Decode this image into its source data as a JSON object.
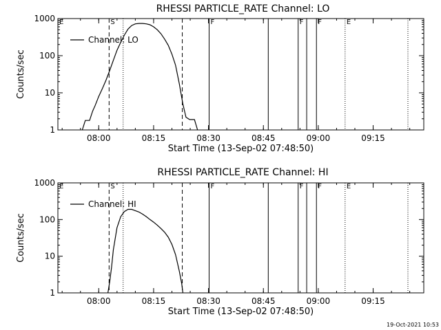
{
  "footer": {
    "timestamp": "19-Oct-2021 10:53"
  },
  "chart_data": [
    {
      "type": "line",
      "title": "RHESSI PARTICLE_RATE Channel: LO",
      "xlabel": "Start Time (13-Sep-02 07:48:50)",
      "ylabel": "Counts/sec",
      "yscale": "log",
      "ylim": [
        1,
        1000
      ],
      "xlim_minutes_clock": [
        "07:48:50",
        "09:28:50"
      ],
      "x_ticks": [
        "08:00",
        "08:15",
        "08:30",
        "08:45",
        "09:00",
        "09:15"
      ],
      "y_ticks": [
        "1",
        "10",
        "100",
        "1000"
      ],
      "legend": {
        "position": "top-left",
        "entries": [
          "Channel: LO"
        ]
      },
      "series": [
        {
          "name": "Channel: LO",
          "x": [
            "07:55:30",
            "07:56:20",
            "07:57:30",
            "07:58:20",
            "07:59:00",
            "08:00:00",
            "08:01:00",
            "08:02:00",
            "08:03:00",
            "08:04:00",
            "08:05:00",
            "08:06:00",
            "08:07:00",
            "08:08:00",
            "08:09:00",
            "08:10:00",
            "08:11:00",
            "08:12:00",
            "08:13:00",
            "08:14:00",
            "08:15:00",
            "08:16:00",
            "08:17:00",
            "08:18:00",
            "08:19:00",
            "08:20:00",
            "08:21:00",
            "08:22:00",
            "08:23:00",
            "08:23:50",
            "08:24:50",
            "08:25:30",
            "08:26:10",
            "08:27:00"
          ],
          "y": [
            1.0,
            1.8,
            1.8,
            3.2,
            4.5,
            8,
            13,
            22,
            40,
            75,
            140,
            230,
            360,
            520,
            650,
            720,
            740,
            740,
            720,
            680,
            600,
            500,
            390,
            280,
            190,
            110,
            55,
            18,
            5,
            2.2,
            1.9,
            1.9,
            1.9,
            1.0
          ]
        }
      ],
      "markers": [
        {
          "label": "E",
          "time": "07:48:50",
          "style": "solid"
        },
        {
          "label": "S",
          "time": "08:02:50",
          "style": "dashed"
        },
        {
          "label": "",
          "time": "08:06:40",
          "style": "dotted"
        },
        {
          "label": "",
          "time": "08:22:50",
          "style": "dashed"
        },
        {
          "label": "F",
          "time": "08:30:10",
          "style": "solid"
        },
        {
          "label": "",
          "time": "08:46:20",
          "style": "solid"
        },
        {
          "label": "F",
          "time": "08:54:30",
          "style": "solid"
        },
        {
          "label": "",
          "time": "08:56:50",
          "style": "solid"
        },
        {
          "label": "F",
          "time": "08:59:30",
          "style": "solid"
        },
        {
          "label": "E",
          "time": "09:07:20",
          "style": "dotted"
        },
        {
          "label": "",
          "time": "09:24:30",
          "style": "dotted"
        }
      ]
    },
    {
      "type": "line",
      "title": "RHESSI PARTICLE_RATE Channel: HI",
      "xlabel": "Start Time (13-Sep-02 07:48:50)",
      "ylabel": "Counts/sec",
      "yscale": "log",
      "ylim": [
        1,
        1000
      ],
      "xlim_minutes_clock": [
        "07:48:50",
        "09:28:50"
      ],
      "x_ticks": [
        "08:00",
        "08:15",
        "08:30",
        "08:45",
        "09:00",
        "09:15"
      ],
      "y_ticks": [
        "1",
        "10",
        "100",
        "1000"
      ],
      "legend": {
        "position": "top-left",
        "entries": [
          "Channel: HI"
        ]
      },
      "series": [
        {
          "name": "Channel: HI",
          "x": [
            "08:02:30",
            "08:03:00",
            "08:03:30",
            "08:04:00",
            "08:05:00",
            "08:06:00",
            "08:07:00",
            "08:08:00",
            "08:09:00",
            "08:10:00",
            "08:11:00",
            "08:12:00",
            "08:13:00",
            "08:14:00",
            "08:15:00",
            "08:16:00",
            "08:17:00",
            "08:18:00",
            "08:19:00",
            "08:20:00",
            "08:21:00",
            "08:22:00",
            "08:22:40",
            "08:23:00"
          ],
          "y": [
            1.0,
            2.0,
            5,
            15,
            60,
            120,
            165,
            190,
            190,
            175,
            160,
            140,
            120,
            100,
            85,
            70,
            57,
            45,
            33,
            21,
            11,
            4,
            1.8,
            1.0
          ]
        }
      ],
      "markers": [
        {
          "label": "E",
          "time": "07:48:50",
          "style": "solid"
        },
        {
          "label": "S",
          "time": "08:02:50",
          "style": "dashed"
        },
        {
          "label": "",
          "time": "08:06:40",
          "style": "dotted"
        },
        {
          "label": "",
          "time": "08:22:50",
          "style": "dashed"
        },
        {
          "label": "F",
          "time": "08:30:10",
          "style": "solid"
        },
        {
          "label": "",
          "time": "08:46:20",
          "style": "solid"
        },
        {
          "label": "F",
          "time": "08:54:30",
          "style": "solid"
        },
        {
          "label": "",
          "time": "08:56:50",
          "style": "solid"
        },
        {
          "label": "F",
          "time": "08:59:30",
          "style": "solid"
        },
        {
          "label": "E",
          "time": "09:07:20",
          "style": "dotted"
        },
        {
          "label": "",
          "time": "09:24:30",
          "style": "dotted"
        }
      ]
    }
  ]
}
